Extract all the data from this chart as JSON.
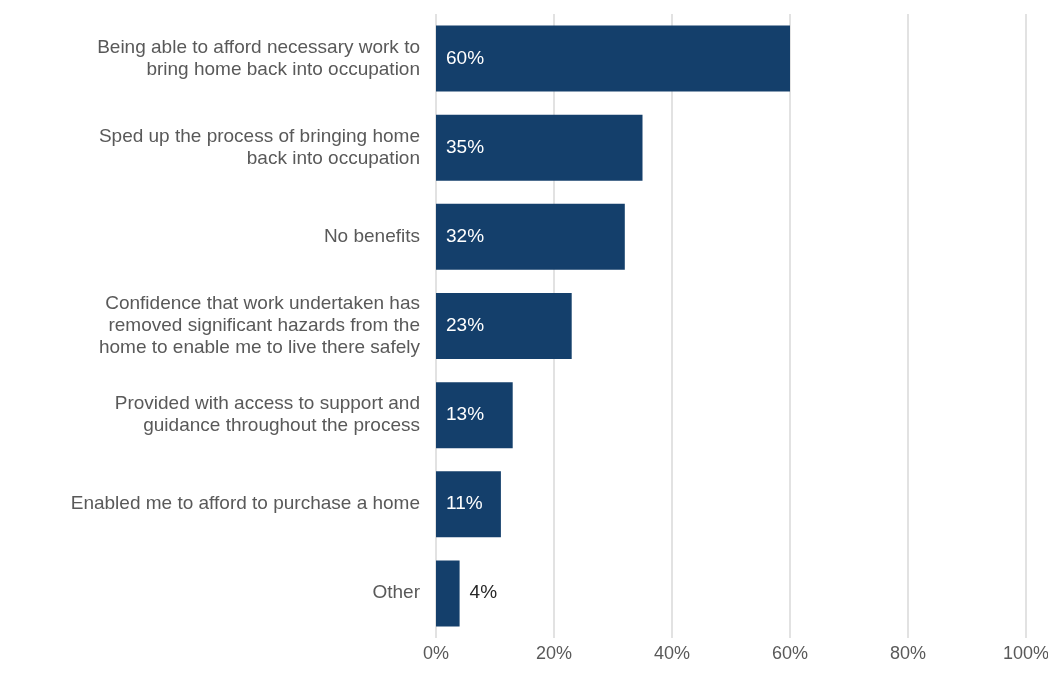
{
  "chart_data": {
    "type": "bar",
    "orientation": "horizontal",
    "categories": [
      "Being able to afford necessary work to bring home back into occupation",
      "Sped up the process of bringing home back into occupation",
      "No benefits",
      "Confidence that work undertaken has removed significant hazards from the home to enable me to live there safely",
      "Provided with access to support and guidance throughout the process",
      "Enabled me to afford to purchase a home",
      "Other"
    ],
    "values": [
      60,
      35,
      32,
      23,
      13,
      11,
      4
    ],
    "value_labels": [
      "60%",
      "35%",
      "32%",
      "23%",
      "13%",
      "11%",
      "4%"
    ],
    "color": "#143f6b",
    "xlim": [
      0,
      100
    ],
    "xticks": [
      {
        "value": 0,
        "label": "0%"
      },
      {
        "value": 20,
        "label": "20%"
      },
      {
        "value": 40,
        "label": "40%"
      },
      {
        "value": 60,
        "label": "60%"
      },
      {
        "value": 80,
        "label": "80%"
      },
      {
        "value": 100,
        "label": "100%"
      }
    ],
    "grid": "x"
  }
}
